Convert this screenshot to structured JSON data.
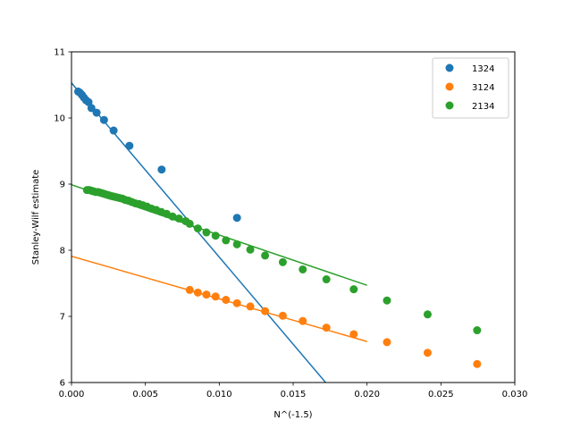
{
  "chart_data": {
    "type": "scatter",
    "xlabel": "N^(-1.5)",
    "ylabel": "Stanley-Wilf estimate",
    "xlim": [
      0,
      0.03
    ],
    "ylim": [
      6,
      11
    ],
    "xticks": [
      "0.000",
      "0.005",
      "0.010",
      "0.015",
      "0.020",
      "0.025",
      "0.030"
    ],
    "yticks": [
      "6",
      "7",
      "8",
      "9",
      "10",
      "11"
    ],
    "legend_position": "top-right",
    "series": [
      {
        "name": "1324",
        "color": "#1f77b4",
        "points": [
          [
            0.00045,
            10.4
          ],
          [
            0.00058,
            10.38
          ],
          [
            0.0007,
            10.35
          ],
          [
            0.00083,
            10.31
          ],
          [
            0.00098,
            10.27
          ],
          [
            0.00115,
            10.24
          ],
          [
            0.00135,
            10.15
          ],
          [
            0.0017,
            10.08
          ],
          [
            0.0022,
            9.97
          ],
          [
            0.00285,
            9.81
          ],
          [
            0.00392,
            9.58
          ],
          [
            0.0061,
            9.22
          ],
          [
            0.0112,
            8.49
          ]
        ],
        "fit": {
          "x": [
            0,
            0.0172
          ],
          "y": [
            10.53,
            6.0
          ]
        }
      },
      {
        "name": "3124",
        "color": "#ff7f0e",
        "points": [
          [
            0.008,
            7.4
          ],
          [
            0.00855,
            7.36
          ],
          [
            0.00913,
            7.33
          ],
          [
            0.00975,
            7.3
          ],
          [
            0.01045,
            7.25
          ],
          [
            0.0112,
            7.2
          ],
          [
            0.0121,
            7.15
          ],
          [
            0.0131,
            7.08
          ],
          [
            0.0143,
            7.01
          ],
          [
            0.01565,
            6.93
          ],
          [
            0.01725,
            6.83
          ],
          [
            0.0191,
            6.73
          ],
          [
            0.02135,
            6.61
          ],
          [
            0.0241,
            6.45
          ],
          [
            0.02745,
            6.28
          ]
        ],
        "fit": {
          "x": [
            0,
            0.02
          ],
          "y": [
            7.91,
            6.62
          ]
        }
      },
      {
        "name": "2134",
        "color": "#2ca02c",
        "points": [
          [
            0.00105,
            8.91
          ],
          [
            0.0012,
            8.91
          ],
          [
            0.00135,
            8.9
          ],
          [
            0.0015,
            8.89
          ],
          [
            0.00165,
            8.88
          ],
          [
            0.0018,
            8.88
          ],
          [
            0.00195,
            8.87
          ],
          [
            0.0021,
            8.86
          ],
          [
            0.00225,
            8.85
          ],
          [
            0.0024,
            8.84
          ],
          [
            0.00255,
            8.83
          ],
          [
            0.0027,
            8.82
          ],
          [
            0.00288,
            8.81
          ],
          [
            0.00306,
            8.8
          ],
          [
            0.00325,
            8.79
          ],
          [
            0.00345,
            8.78
          ],
          [
            0.00365,
            8.76
          ],
          [
            0.00386,
            8.75
          ],
          [
            0.00408,
            8.73
          ],
          [
            0.00432,
            8.71
          ],
          [
            0.00457,
            8.7
          ],
          [
            0.00483,
            8.68
          ],
          [
            0.00511,
            8.66
          ],
          [
            0.00541,
            8.63
          ],
          [
            0.00573,
            8.61
          ],
          [
            0.00607,
            8.58
          ],
          [
            0.00644,
            8.55
          ],
          [
            0.00684,
            8.51
          ],
          [
            0.00727,
            8.48
          ],
          [
            0.00773,
            8.44
          ],
          [
            0.008,
            8.4
          ],
          [
            0.00855,
            8.33
          ],
          [
            0.00913,
            8.27
          ],
          [
            0.00975,
            8.22
          ],
          [
            0.01045,
            8.15
          ],
          [
            0.0112,
            8.09
          ],
          [
            0.0121,
            8.01
          ],
          [
            0.0131,
            7.92
          ],
          [
            0.0143,
            7.82
          ],
          [
            0.01565,
            7.71
          ],
          [
            0.01725,
            7.56
          ],
          [
            0.0191,
            7.41
          ],
          [
            0.02135,
            7.24
          ],
          [
            0.0241,
            7.03
          ],
          [
            0.02745,
            6.79
          ]
        ],
        "fit": {
          "x": [
            0,
            0.02
          ],
          "y": [
            8.99,
            7.47
          ]
        }
      }
    ]
  }
}
